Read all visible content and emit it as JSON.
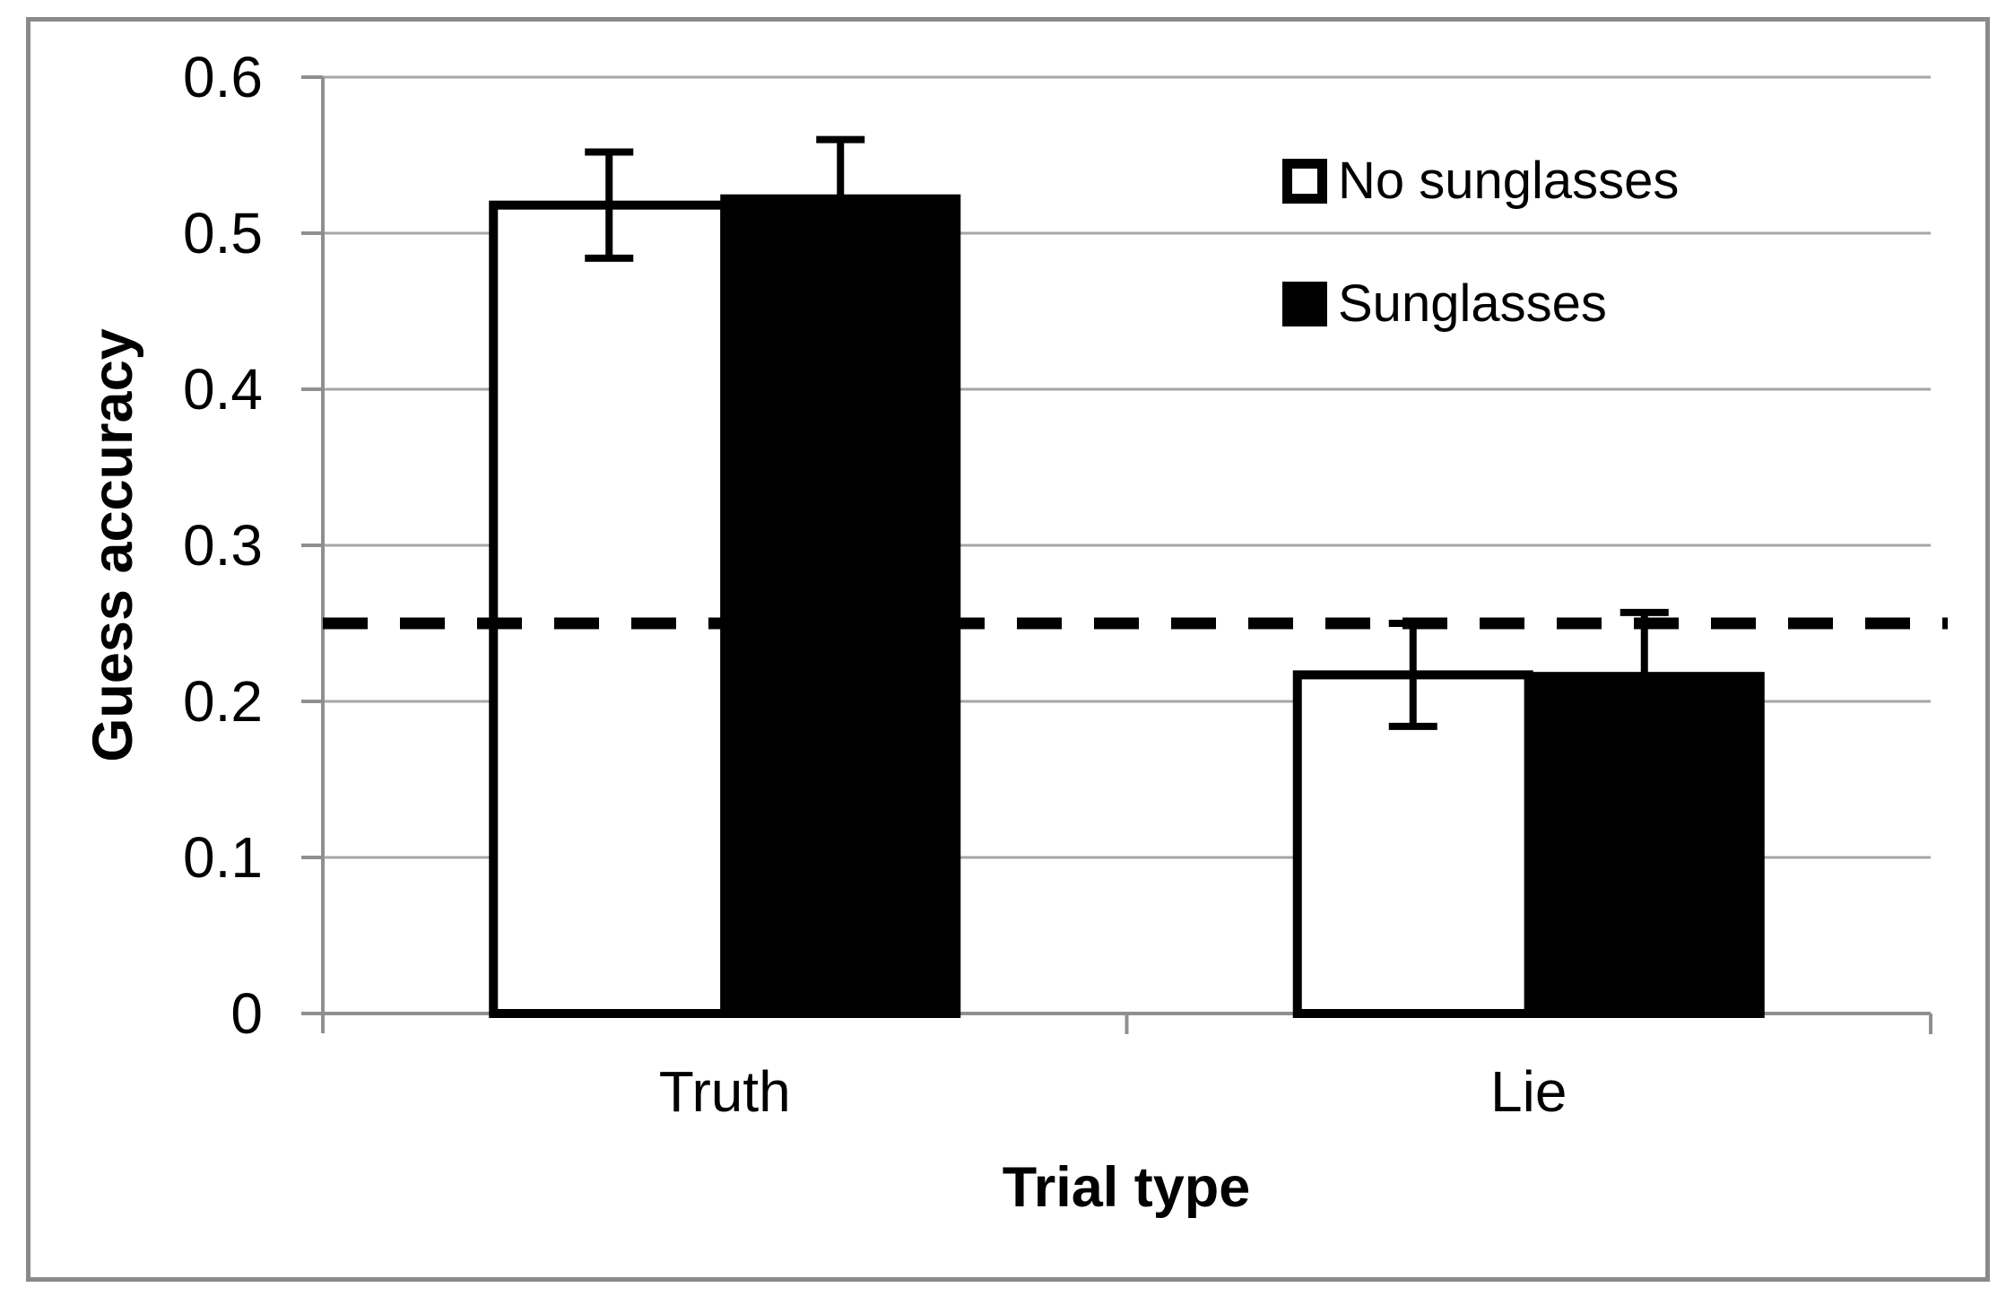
{
  "figure": {
    "background": "#ffffff",
    "frame_color": "#8a8a8a"
  },
  "chart_data": {
    "type": "bar",
    "title": "",
    "xlabel": "Trial type",
    "ylabel": "Guess accuracy",
    "categories": [
      "Truth",
      "Lie"
    ],
    "series": [
      {
        "name": "No sunglasses",
        "swatch": "outline",
        "fill": "#ffffff",
        "stroke": "#000000",
        "values": [
          0.518,
          0.217
        ],
        "errors": [
          0.034,
          0.033
        ]
      },
      {
        "name": "Sunglasses",
        "swatch": "solid",
        "fill": "#000000",
        "stroke": "#000000",
        "values": [
          0.522,
          0.216
        ],
        "errors": [
          0.038,
          0.041
        ]
      }
    ],
    "error_bars": true,
    "reference_line": {
      "value": 0.25,
      "style": "dashed",
      "color": "#000000",
      "meaning": "chance level"
    },
    "ylim": [
      0,
      0.6
    ],
    "yticks": [
      {
        "v": 0,
        "label": "0"
      },
      {
        "v": 0.1,
        "label": "0.1"
      },
      {
        "v": 0.2,
        "label": "0.2"
      },
      {
        "v": 0.3,
        "label": "0.3"
      },
      {
        "v": 0.4,
        "label": "0.4"
      },
      {
        "v": 0.5,
        "label": "0.5"
      },
      {
        "v": 0.6,
        "label": "0.6"
      }
    ],
    "grid": "horizontal",
    "gridline_color": "#a6a6a6",
    "axis_color": "#8f8f8f",
    "legend_position": "upper-right-inside"
  }
}
